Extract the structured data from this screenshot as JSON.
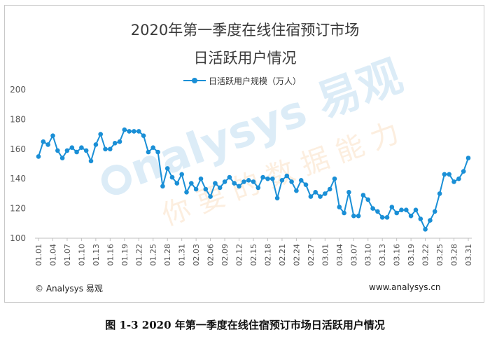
{
  "header": {
    "title_line1": "2020年第一季度在线住宿预订市场",
    "title_line2": "日活跃用户情况"
  },
  "watermark": {
    "brand": "Analysys 易观",
    "slogan": "你要的数据能力"
  },
  "footer": {
    "copyright": "© Analysys 易观",
    "website": "www.analysys.cn"
  },
  "caption": "图 1-3 2020 年第一季度在线住宿预订市场日活跃用户情况",
  "colors": {
    "series": "#1a8fd6",
    "watermark": "#9ccbea",
    "grid": "#e5e5e5"
  },
  "chart_data": {
    "type": "line",
    "title": "2020年第一季度在线住宿预订市场日活跃用户情况",
    "legend_position": "top-center",
    "grid": false,
    "ylim": [
      100,
      200
    ],
    "yticks": [
      100,
      120,
      140,
      160,
      180,
      200
    ],
    "xtick_labels": [
      "01.01",
      "01.04",
      "01.07",
      "01.10",
      "01.13",
      "01.16",
      "01.19",
      "01.22",
      "01.25",
      "01.28",
      "01.31",
      "02.03",
      "02.06",
      "02.09",
      "02.12",
      "02.15",
      "02.18",
      "02.21",
      "02.24",
      "02.27",
      "03.01",
      "03.04",
      "03.07",
      "03.10",
      "03.13",
      "03.16",
      "03.19",
      "03.22",
      "03.25",
      "03.28",
      "03.31"
    ],
    "series": [
      {
        "name": "日活跃用户规模（万人）",
        "values": [
          155,
          165,
          163,
          169,
          159,
          154,
          159,
          161,
          158,
          161,
          159,
          152,
          163,
          170,
          160,
          160,
          164,
          165,
          173,
          172,
          172,
          172,
          169,
          158,
          161,
          158,
          135,
          147,
          141,
          137,
          143,
          131,
          137,
          133,
          140,
          133,
          128,
          137,
          134,
          138,
          141,
          137,
          135,
          138,
          139,
          138,
          134,
          141,
          140,
          140,
          127,
          139,
          142,
          138,
          132,
          139,
          136,
          128,
          131,
          128,
          130,
          133,
          140,
          121,
          117,
          131,
          115,
          115,
          129,
          126,
          120,
          118,
          114,
          114,
          121,
          117,
          119,
          119,
          115,
          119,
          113,
          106,
          112,
          118,
          130,
          143,
          143,
          138,
          140,
          145,
          154
        ]
      }
    ]
  }
}
